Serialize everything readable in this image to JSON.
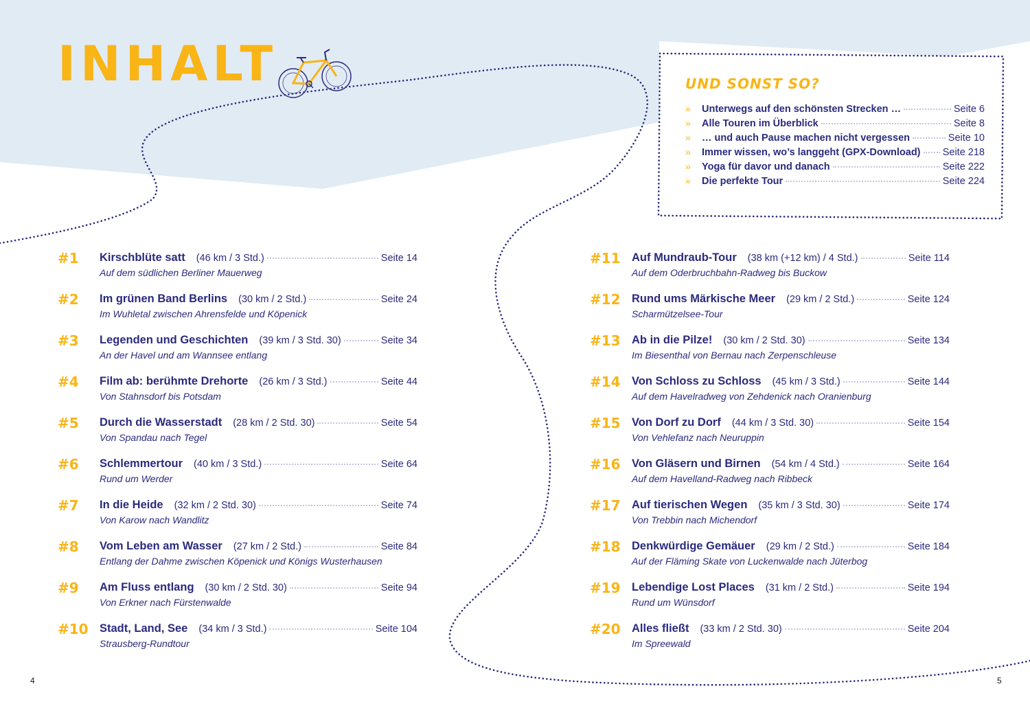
{
  "header": {
    "title": "INHALT"
  },
  "sidebox": {
    "title": "UND SONST SO?",
    "items": [
      {
        "label": "Unterwegs auf den schönsten Strecken …",
        "page": "Seite 6"
      },
      {
        "label": "Alle Touren im Überblick",
        "page": "Seite 8"
      },
      {
        "label": "… und auch Pause machen nicht vergessen",
        "page": "Seite 10"
      },
      {
        "label": "Immer wissen, wo’s langgeht (GPX-Download)",
        "page": "Seite 218"
      },
      {
        "label": "Yoga für davor und danach",
        "page": "Seite 222"
      },
      {
        "label": "Die perfekte Tour",
        "page": "Seite 224"
      }
    ]
  },
  "tours_left": [
    {
      "num": "#1",
      "name": "Kirschblüte satt",
      "dist": "(46 km / 3 Std.)",
      "page": "Seite 14",
      "sub": "Auf dem südlichen Berliner Mauerweg"
    },
    {
      "num": "#2",
      "name": "Im grünen Band Berlins",
      "dist": "(30 km / 2 Std.)",
      "page": "Seite 24",
      "sub": "Im Wuhletal zwischen Ahrensfelde und Köpenick"
    },
    {
      "num": "#3",
      "name": "Legenden und Geschichten",
      "dist": "(39 km / 3 Std. 30)",
      "page": "Seite 34",
      "sub": "An der Havel und am Wannsee entlang"
    },
    {
      "num": "#4",
      "name": "Film ab: berühmte Drehorte",
      "dist": "(26 km / 3 Std.)",
      "page": "Seite 44",
      "sub": "Von Stahnsdorf bis Potsdam"
    },
    {
      "num": "#5",
      "name": "Durch die Wasserstadt",
      "dist": "(28 km / 2 Std. 30)",
      "page": "Seite 54",
      "sub": "Von Spandau nach Tegel"
    },
    {
      "num": "#6",
      "name": "Schlemmertour",
      "dist": "(40 km / 3 Std.)",
      "page": "Seite 64",
      "sub": "Rund um Werder"
    },
    {
      "num": "#7",
      "name": "In die Heide",
      "dist": "(32 km / 2 Std. 30)",
      "page": "Seite 74",
      "sub": "Von Karow nach Wandlitz"
    },
    {
      "num": "#8",
      "name": "Vom Leben am Wasser",
      "dist": "(27 km / 2 Std.)",
      "page": "Seite 84",
      "sub": "Entlang der Dahme zwischen Köpenick und Königs Wusterhausen"
    },
    {
      "num": "#9",
      "name": "Am Fluss entlang",
      "dist": "(30 km / 2 Std. 30)",
      "page": "Seite 94",
      "sub": "Von Erkner nach Fürstenwalde"
    },
    {
      "num": "#10",
      "name": "Stadt, Land, See",
      "dist": "(34 km / 3 Std.)",
      "page": "Seite 104",
      "sub": "Strausberg-Rundtour"
    }
  ],
  "tours_right": [
    {
      "num": "#11",
      "name": "Auf Mundraub-Tour",
      "dist": "(38 km (+12 km) / 4 Std.)",
      "page": "Seite 114",
      "sub": "Auf dem Oderbruchbahn-Radweg bis Buckow"
    },
    {
      "num": "#12",
      "name": "Rund ums Märkische Meer",
      "dist": "(29 km / 2 Std.)",
      "page": "Seite 124",
      "sub": "Scharmützelsee-Tour"
    },
    {
      "num": "#13",
      "name": "Ab in die Pilze!",
      "dist": "(30 km / 2 Std. 30)",
      "page": "Seite 134",
      "sub": "Im Biesenthal von Bernau nach Zerpenschleuse"
    },
    {
      "num": "#14",
      "name": "Von Schloss zu Schloss",
      "dist": "(45 km / 3 Std.)",
      "page": "Seite 144",
      "sub": "Auf dem Havelradweg von Zehdenick nach Oranienburg"
    },
    {
      "num": "#15",
      "name": "Von Dorf zu Dorf",
      "dist": "(44 km / 3 Std. 30)",
      "page": "Seite 154",
      "sub": "Von Vehlefanz nach Neuruppin"
    },
    {
      "num": "#16",
      "name": "Von Gläsern und Birnen",
      "dist": "(54 km / 4 Std.)",
      "page": "Seite 164",
      "sub": "Auf dem Havelland-Radweg nach Ribbeck"
    },
    {
      "num": "#17",
      "name": "Auf tierischen Wegen",
      "dist": "(35 km / 3 Std. 30)",
      "page": "Seite 174",
      "sub": "Von Trebbin nach Michendorf"
    },
    {
      "num": "#18",
      "name": "Denkwürdige Gemäuer",
      "dist": "(29 km / 2 Std.)",
      "page": "Seite 184",
      "sub": "Auf der Fläming Skate von Luckenwalde nach Jüterbog"
    },
    {
      "num": "#19",
      "name": "Lebendige Lost Places",
      "dist": "(31 km / 2 Std.)",
      "page": "Seite 194",
      "sub": "Rund um Wünsdorf"
    },
    {
      "num": "#20",
      "name": "Alles fließt",
      "dist": "(33 km / 2 Std. 30)",
      "page": "Seite 204",
      "sub": "Im Spreewald"
    }
  ],
  "footer": {
    "page_left": "4",
    "page_right": "5"
  },
  "colors": {
    "accent": "#f9b416",
    "text": "#2b2a7e",
    "band": "#e1ebf4"
  }
}
